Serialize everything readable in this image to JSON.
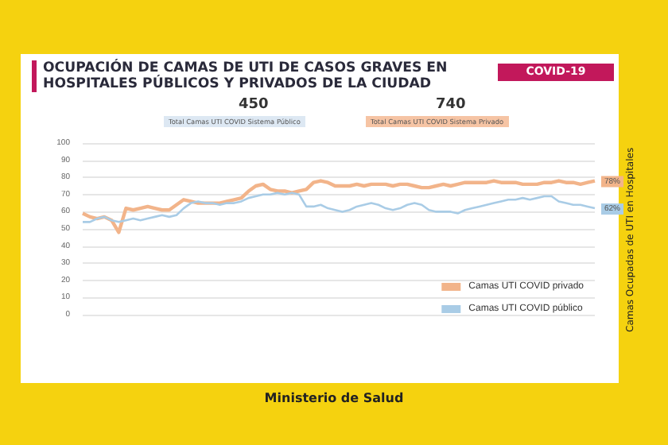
{
  "chart_data": {
    "type": "line",
    "title": "OCUPACIÓN DE CAMAS DE UTI DE CASOS GRAVES EN HOSPITALES PÚBLICOS Y PRIVADOS DE LA CIUDAD",
    "subtitle": "COVID-19",
    "ylabel": "Camas Ocupadas  de UTI en Hospitales",
    "annotations": [
      "450",
      "Total Camas UTI COVID Sistema Público",
      "740",
      "Total Camas UTI COVID Sistema Privado",
      "Ministerio de Salud",
      "78%",
      "62%"
    ],
    "categories": [
      null,
      null,
      null,
      null,
      null,
      null,
      null,
      null,
      null,
      null,
      null,
      null,
      null,
      null,
      null,
      null,
      null,
      null,
      null,
      null,
      null,
      null,
      null,
      null,
      null,
      null,
      null,
      null,
      null,
      null,
      null,
      null,
      null,
      null,
      null,
      null,
      null,
      null,
      null,
      null,
      null,
      null,
      null,
      null,
      null,
      null,
      null,
      null,
      null,
      null,
      null,
      null,
      null,
      null,
      null,
      null,
      null,
      null,
      null,
      null,
      null,
      null,
      null,
      null,
      null,
      null,
      null,
      null,
      null,
      null,
      null,
      null
    ],
    "series": [
      {
        "name": "Camas UTI COVID privado",
        "color": "#f2b48a",
        "values": [
          59,
          57,
          56,
          57,
          55,
          48,
          62,
          61,
          62,
          63,
          62,
          61,
          61,
          64,
          67,
          66,
          65,
          65,
          65,
          65,
          66,
          67,
          68,
          72,
          75,
          76,
          73,
          72,
          72,
          71,
          72,
          73,
          77,
          78,
          77,
          75,
          75,
          75,
          76,
          75,
          76,
          76,
          76,
          75,
          76,
          76,
          75,
          74,
          74,
          75,
          76,
          75,
          76,
          77,
          77,
          77,
          77,
          78,
          77,
          77,
          77,
          76,
          76,
          76,
          77,
          77,
          78,
          77,
          77,
          76,
          77,
          78
        ]
      },
      {
        "name": "Camas UTI COVID público",
        "color": "#a9cce6",
        "values": [
          54,
          54,
          56,
          57,
          55,
          54,
          55,
          56,
          55,
          56,
          57,
          58,
          57,
          58,
          62,
          65,
          66,
          65,
          65,
          64,
          65,
          65,
          66,
          68,
          69,
          70,
          70,
          71,
          70,
          71,
          70,
          63,
          63,
          64,
          62,
          61,
          60,
          61,
          63,
          64,
          65,
          64,
          62,
          61,
          62,
          64,
          65,
          64,
          61,
          60,
          60,
          60,
          59,
          61,
          62,
          63,
          64,
          65,
          66,
          67,
          67,
          68,
          67,
          68,
          69,
          69,
          66,
          65,
          64,
          64,
          63,
          62
        ]
      }
    ],
    "ylim": [
      0,
      100
    ],
    "yticks": [
      0,
      10,
      20,
      30,
      40,
      50,
      60,
      70,
      80,
      90,
      100
    ],
    "grid": "y",
    "legend": "right",
    "marker": "none",
    "line_style": "solid"
  }
}
